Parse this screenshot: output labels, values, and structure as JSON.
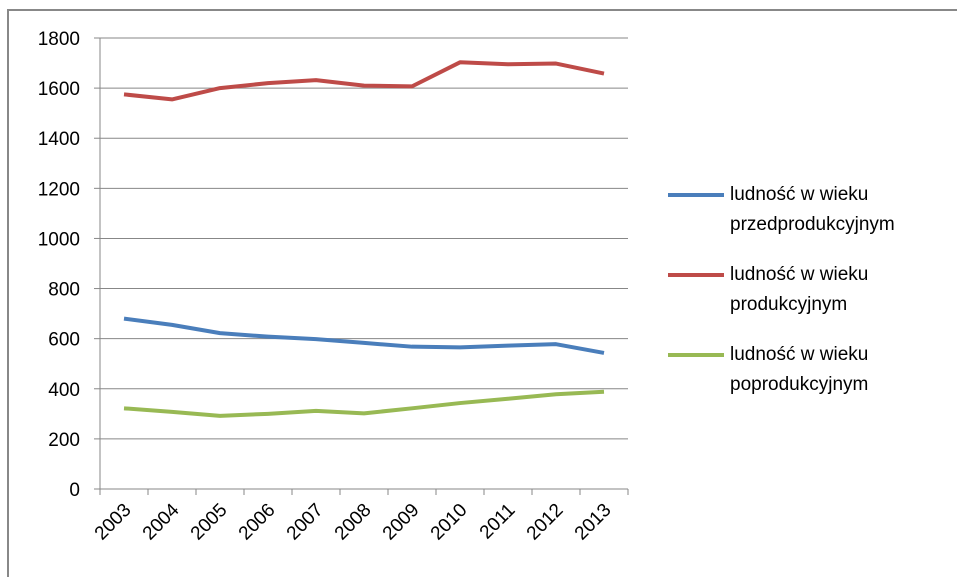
{
  "chart_data": {
    "type": "line",
    "categories": [
      "2003",
      "2004",
      "2005",
      "2006",
      "2007",
      "2008",
      "2009",
      "2010",
      "2011",
      "2012",
      "2013"
    ],
    "series": [
      {
        "name": "ludność w wieku przedprodukcyjnym",
        "color": "#4a7ebb",
        "values": [
          680,
          655,
          622,
          608,
          598,
          583,
          568,
          565,
          572,
          578,
          543
        ]
      },
      {
        "name": "ludność w wieku produkcyjnym",
        "color": "#be4b48",
        "values": [
          1575,
          1555,
          1600,
          1620,
          1632,
          1610,
          1607,
          1703,
          1695,
          1698,
          1658
        ]
      },
      {
        "name": "ludność w wieku poprodukcyjnym",
        "color": "#98b954",
        "values": [
          322,
          308,
          292,
          300,
          312,
          302,
          322,
          343,
          360,
          378,
          388
        ]
      }
    ],
    "ylim": [
      0,
      1800
    ],
    "yticks": [
      0,
      200,
      400,
      600,
      800,
      1000,
      1200,
      1400,
      1600,
      1800
    ],
    "grid": true,
    "legend": "right"
  }
}
